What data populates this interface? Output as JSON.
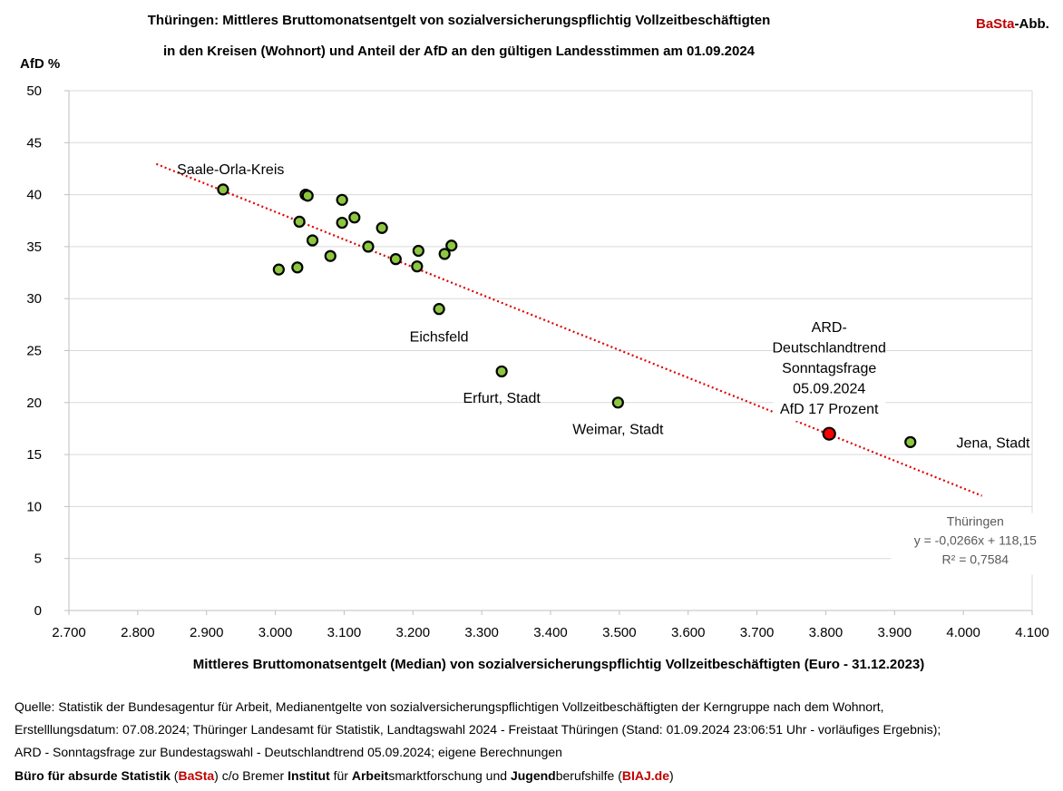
{
  "header": {
    "title_line1": "Thüringen: Mittleres Bruttomonatsentgelt von sozialversicherungspflichtig Vollzeitbeschäftigten",
    "title_line2": "in den Kreisen (Wohnort) und Anteil der AfD an den gültigen Landesstimmen am 01.09.2024",
    "badge_red": "BaSta",
    "badge_rest": "-Abb."
  },
  "chart_data": {
    "type": "scatter",
    "ylabel": "AfD  %",
    "xlabel": "Mittleres Bruttomonatsentgelt (Median) von sozialversicherungspflichtig Vollzeitbeschäftigten (Euro - 31.12.2023)",
    "xlim": [
      2700,
      4100
    ],
    "ylim": [
      0,
      50
    ],
    "x_ticks": [
      2700,
      2800,
      2900,
      3000,
      3100,
      3200,
      3300,
      3400,
      3500,
      3600,
      3700,
      3800,
      3900,
      4000,
      4100
    ],
    "x_tick_labels": [
      "2.700",
      "2.800",
      "2.900",
      "3.000",
      "3.100",
      "3.200",
      "3.300",
      "3.400",
      "3.500",
      "3.600",
      "3.700",
      "3.800",
      "3.900",
      "4.000",
      "4.100"
    ],
    "y_ticks": [
      0,
      5,
      10,
      15,
      20,
      25,
      30,
      35,
      40,
      45,
      50
    ],
    "y_tick_labels": [
      "0",
      "5",
      "10",
      "15",
      "20",
      "25",
      "30",
      "35",
      "40",
      "45",
      "50"
    ],
    "grid": "horizontal",
    "points": [
      {
        "x": 2924,
        "y": 40.5
      },
      {
        "x": 3044,
        "y": 40.0
      },
      {
        "x": 3047,
        "y": 39.9
      },
      {
        "x": 3097,
        "y": 39.5
      },
      {
        "x": 3115,
        "y": 37.8
      },
      {
        "x": 3035,
        "y": 37.4
      },
      {
        "x": 3097,
        "y": 37.3
      },
      {
        "x": 3155,
        "y": 36.8
      },
      {
        "x": 3054,
        "y": 35.6
      },
      {
        "x": 3256,
        "y": 35.1
      },
      {
        "x": 3135,
        "y": 35.0
      },
      {
        "x": 3208,
        "y": 34.6
      },
      {
        "x": 3246,
        "y": 34.3
      },
      {
        "x": 3080,
        "y": 34.1
      },
      {
        "x": 3175,
        "y": 33.8
      },
      {
        "x": 3206,
        "y": 33.1
      },
      {
        "x": 3032,
        "y": 33.0
      },
      {
        "x": 3005,
        "y": 32.8
      },
      {
        "x": 3238,
        "y": 29.0
      },
      {
        "x": 3329,
        "y": 23.0
      },
      {
        "x": 3498,
        "y": 20.0
      },
      {
        "x": 3923,
        "y": 16.2
      }
    ],
    "highlight_point": {
      "x": 3805,
      "y": 17.0
    },
    "trendline": {
      "x_start": 2827,
      "x_end": 4027,
      "slope": -0.0266,
      "intercept": 118.15
    },
    "point_labels": [
      {
        "text": "Saale-Orla-Kreis",
        "x": 2935,
        "y": 42.5
      },
      {
        "text": "Eichsfeld",
        "x": 3238,
        "y": 26.4
      },
      {
        "text": "Erfurt, Stadt",
        "x": 3329,
        "y": 20.5
      },
      {
        "text": "Weimar, Stadt",
        "x": 3498,
        "y": 17.5
      },
      {
        "text": "Jena, Stadt",
        "x": 3990,
        "y": 16.2
      }
    ],
    "ard_annotation": {
      "lines": [
        "ARD-",
        "Deutschlandtrend",
        "Sonntagsfrage",
        "05.09.2024",
        "AfD 17 Prozent"
      ],
      "x": 3805,
      "y": 28.0
    },
    "equation": {
      "lines": [
        "Thüringen",
        "y = -0,0266x + 118,15",
        "R² = 0,7584"
      ],
      "x": 4020,
      "y": 8.5
    },
    "colors": {
      "point": "#8dc63f",
      "highlight": "#ff0000",
      "trend": "#e00000",
      "grid": "#d9d9d9",
      "axis": "#bfbfbf",
      "equation": "#595959"
    }
  },
  "footer": {
    "line1": "Quelle: Statistik der Bundesagentur für Arbeit, Medianentgelte  von sozialversicherungspflichtigen Vollzeitbeschäftigten der Kerngruppe nach dem Wohnort,",
    "line2": "Erstelllungsdatum: 07.08.2024; Thüringer Landesamt für Statistik, Landtagswahl 2024 - Freistaat Thüringen (Stand: 01.09.2024 23:06:51 Uhr - vorläufiges Ergebnis);",
    "line3": "ARD - Sonntagsfrage zur Bundestagswahl - Deutschlandtrend 05.09.2024; eigene Berechnungen",
    "line4_parts": [
      {
        "text": "Büro für absurde Statistik",
        "style": "b"
      },
      {
        "text": " (",
        "style": ""
      },
      {
        "text": "BaSta",
        "style": "r"
      },
      {
        "text": ") c/o Bremer ",
        "style": ""
      },
      {
        "text": "Institut",
        "style": "b"
      },
      {
        "text": " für ",
        "style": ""
      },
      {
        "text": "Arbeit",
        "style": "b"
      },
      {
        "text": "smarktforschung und ",
        "style": ""
      },
      {
        "text": "Jugend",
        "style": "b"
      },
      {
        "text": "berufshilfe (",
        "style": ""
      },
      {
        "text": "BIAJ.de",
        "style": "r"
      },
      {
        "text": ")",
        "style": ""
      }
    ]
  }
}
